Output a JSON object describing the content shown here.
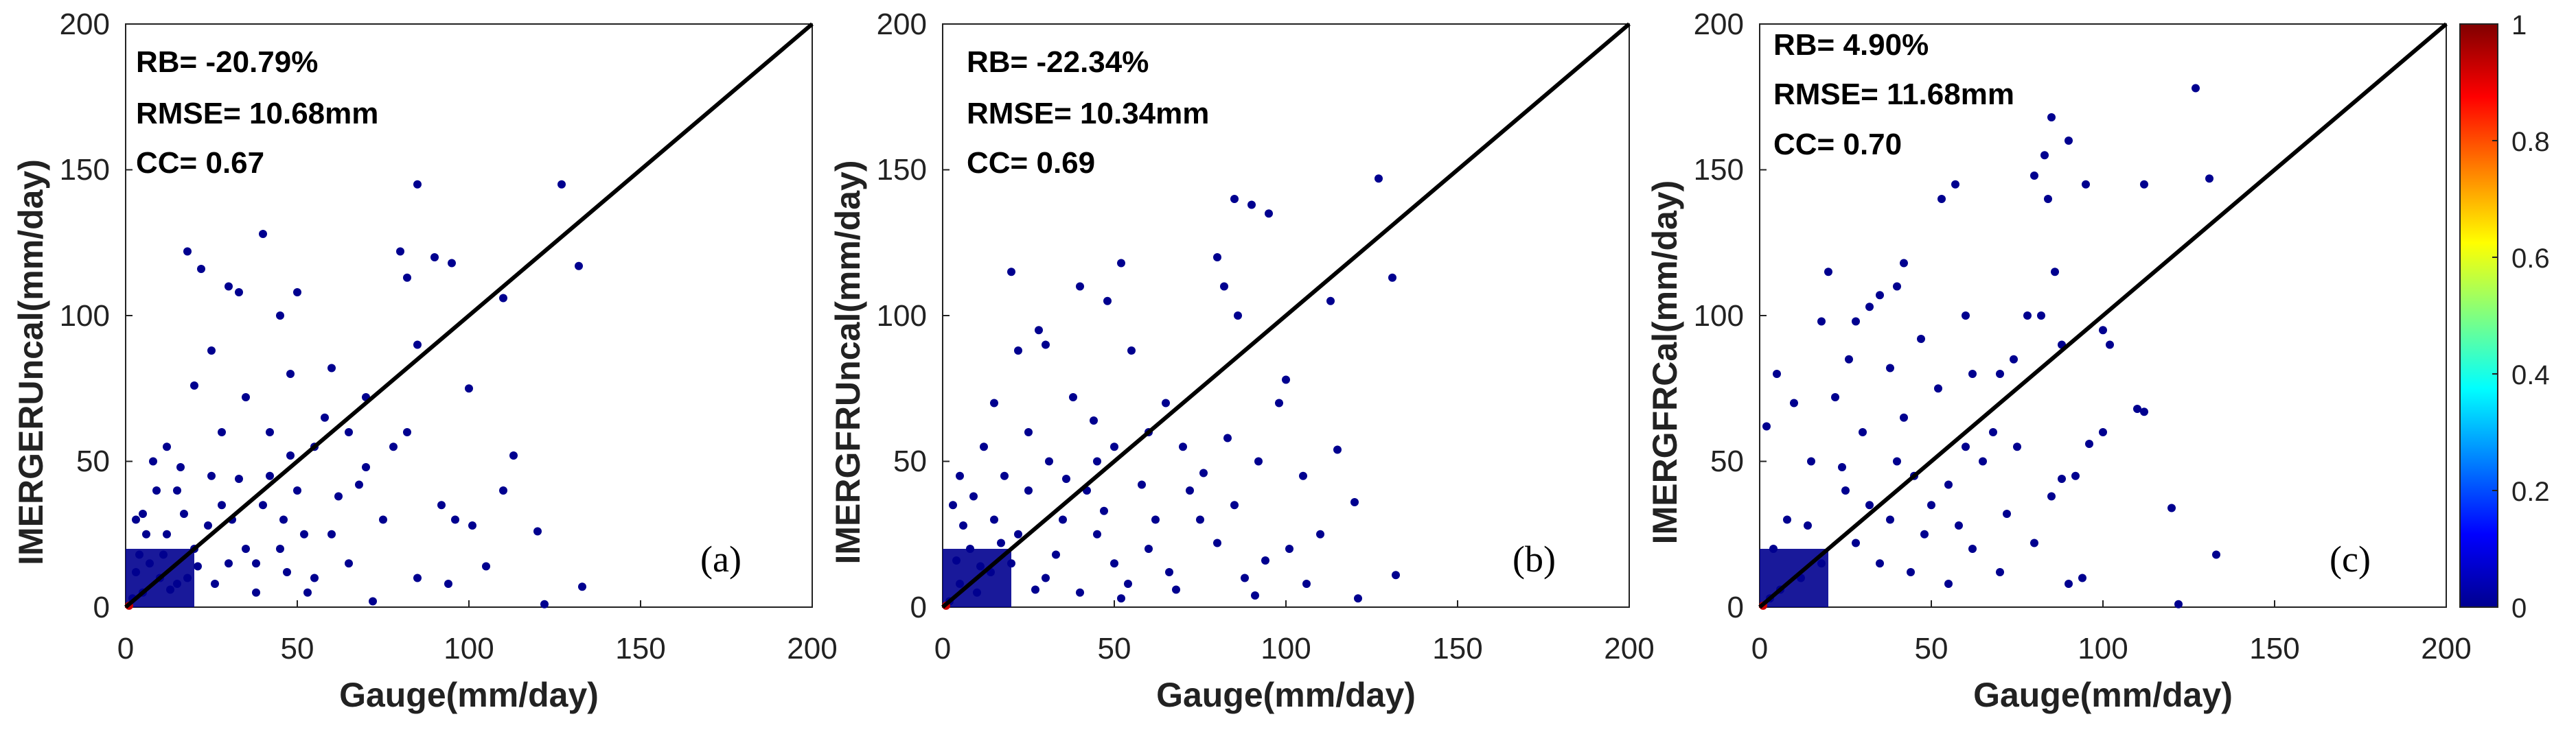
{
  "chart_data": [
    {
      "type": "scatter",
      "panel_label": "(a)",
      "xlabel": "Gauge(mm/day)",
      "ylabel": "IMERGERUncal(mm/day)",
      "xlim": [
        0,
        200
      ],
      "ylim": [
        0,
        200
      ],
      "xticks": [
        "0",
        "50",
        "100",
        "150",
        "200"
      ],
      "yticks": [
        "0",
        "50",
        "100",
        "150",
        "200"
      ],
      "stats": [
        "RB= -20.79%",
        "RMSE= 10.68mm",
        "CC= 0.67"
      ],
      "reference_line": [
        [
          0,
          0
        ],
        [
          200,
          200
        ]
      ],
      "point_color": "#00008f",
      "points": [
        [
          18,
          122
        ],
        [
          22,
          116
        ],
        [
          40,
          128
        ],
        [
          33,
          108
        ],
        [
          30,
          110
        ],
        [
          25,
          88
        ],
        [
          45,
          100
        ],
        [
          50,
          108
        ],
        [
          48,
          80
        ],
        [
          60,
          82
        ],
        [
          70,
          72
        ],
        [
          80,
          122
        ],
        [
          82,
          113
        ],
        [
          85,
          145
        ],
        [
          90,
          120
        ],
        [
          95,
          118
        ],
        [
          100,
          75
        ],
        [
          82,
          60
        ],
        [
          85,
          90
        ],
        [
          110,
          106
        ],
        [
          113,
          52
        ],
        [
          120,
          26
        ],
        [
          127,
          145
        ],
        [
          132,
          117
        ],
        [
          133,
          7
        ],
        [
          122,
          1
        ],
        [
          110,
          40
        ],
        [
          101,
          28
        ],
        [
          92,
          35
        ],
        [
          70,
          48
        ],
        [
          75,
          30
        ],
        [
          65,
          60
        ],
        [
          55,
          55
        ],
        [
          50,
          40
        ],
        [
          35,
          72
        ],
        [
          28,
          60
        ],
        [
          20,
          76
        ],
        [
          12,
          55
        ],
        [
          8,
          50
        ],
        [
          5,
          32
        ],
        [
          3,
          30
        ],
        [
          15,
          40
        ],
        [
          25,
          45
        ],
        [
          40,
          35
        ],
        [
          45,
          20
        ],
        [
          55,
          10
        ],
        [
          60,
          25
        ],
        [
          30,
          15
        ],
        [
          20,
          20
        ],
        [
          10,
          10
        ],
        [
          5,
          5
        ],
        [
          2,
          3
        ],
        [
          4,
          18
        ],
        [
          18,
          10
        ],
        [
          12,
          25
        ],
        [
          35,
          20
        ],
        [
          42,
          60
        ],
        [
          38,
          15
        ],
        [
          62,
          38
        ],
        [
          85,
          10
        ],
        [
          72,
          2
        ],
        [
          94,
          8
        ],
        [
          105,
          14
        ],
        [
          96,
          30
        ],
        [
          78,
          55
        ],
        [
          68,
          42
        ],
        [
          58,
          65
        ],
        [
          48,
          52
        ],
        [
          28,
          35
        ],
        [
          16,
          48
        ],
        [
          9,
          40
        ],
        [
          24,
          28
        ],
        [
          33,
          44
        ],
        [
          46,
          30
        ],
        [
          52,
          25
        ],
        [
          15,
          8
        ],
        [
          7,
          15
        ],
        [
          26,
          8
        ],
        [
          38,
          5
        ],
        [
          42,
          45
        ],
        [
          65,
          15
        ],
        [
          53,
          5
        ],
        [
          47,
          12
        ],
        [
          3,
          12
        ],
        [
          6,
          25
        ],
        [
          11,
          18
        ],
        [
          21,
          14
        ],
        [
          31,
          30
        ],
        [
          17,
          32
        ],
        [
          13,
          6
        ]
      ]
    },
    {
      "type": "scatter",
      "panel_label": "(b)",
      "xlabel": "Gauge(mm/day)",
      "ylabel": "IMERGFRUncal(mm/day)",
      "xlim": [
        0,
        200
      ],
      "ylim": [
        0,
        200
      ],
      "xticks": [
        "0",
        "50",
        "100",
        "150",
        "200"
      ],
      "yticks": [
        "0",
        "50",
        "100",
        "150",
        "200"
      ],
      "stats": [
        "RB= -22.34%",
        "RMSE= 10.34mm",
        "CC= 0.69"
      ],
      "reference_line": [
        [
          0,
          0
        ],
        [
          200,
          200
        ]
      ],
      "point_color": "#00008f",
      "points": [
        [
          20,
          115
        ],
        [
          40,
          110
        ],
        [
          48,
          105
        ],
        [
          52,
          118
        ],
        [
          22,
          88
        ],
        [
          30,
          90
        ],
        [
          80,
          120
        ],
        [
          85,
          140
        ],
        [
          90,
          138
        ],
        [
          95,
          135
        ],
        [
          82,
          110
        ],
        [
          86,
          100
        ],
        [
          127,
          147
        ],
        [
          131,
          113
        ],
        [
          113,
          105
        ],
        [
          120,
          36
        ],
        [
          115,
          54
        ],
        [
          132,
          11
        ],
        [
          100,
          78
        ],
        [
          98,
          70
        ],
        [
          92,
          50
        ],
        [
          105,
          45
        ],
        [
          110,
          25
        ],
        [
          85,
          35
        ],
        [
          75,
          30
        ],
        [
          70,
          55
        ],
        [
          65,
          70
        ],
        [
          55,
          88
        ],
        [
          60,
          60
        ],
        [
          45,
          50
        ],
        [
          38,
          72
        ],
        [
          28,
          95
        ],
        [
          15,
          70
        ],
        [
          12,
          55
        ],
        [
          5,
          45
        ],
        [
          3,
          35
        ],
        [
          8,
          20
        ],
        [
          15,
          30
        ],
        [
          25,
          40
        ],
        [
          35,
          30
        ],
        [
          45,
          25
        ],
        [
          50,
          15
        ],
        [
          60,
          20
        ],
        [
          30,
          10
        ],
        [
          20,
          15
        ],
        [
          10,
          5
        ],
        [
          5,
          8
        ],
        [
          2,
          2
        ],
        [
          6,
          28
        ],
        [
          18,
          45
        ],
        [
          25,
          60
        ],
        [
          42,
          40
        ],
        [
          50,
          55
        ],
        [
          58,
          42
        ],
        [
          72,
          40
        ],
        [
          88,
          10
        ],
        [
          80,
          22
        ],
        [
          101,
          20
        ],
        [
          94,
          16
        ],
        [
          66,
          12
        ],
        [
          54,
          8
        ],
        [
          40,
          5
        ],
        [
          33,
          18
        ],
        [
          14,
          12
        ],
        [
          9,
          38
        ],
        [
          22,
          25
        ],
        [
          31,
          50
        ],
        [
          44,
          64
        ],
        [
          62,
          30
        ],
        [
          76,
          46
        ],
        [
          83,
          58
        ],
        [
          47,
          33
        ],
        [
          36,
          44
        ],
        [
          27,
          6
        ],
        [
          17,
          22
        ],
        [
          11,
          14
        ],
        [
          4,
          16
        ],
        [
          52,
          3
        ],
        [
          68,
          6
        ],
        [
          91,
          4
        ],
        [
          106,
          8
        ],
        [
          121,
          3
        ]
      ]
    },
    {
      "type": "scatter",
      "panel_label": "(c)",
      "xlabel": "Gauge(mm/day)",
      "ylabel": "IMERGFRCal(mm/day)",
      "xlim": [
        0,
        200
      ],
      "ylim": [
        0,
        200
      ],
      "xticks": [
        "0",
        "50",
        "100",
        "150",
        "200"
      ],
      "yticks": [
        "0",
        "50",
        "100",
        "150",
        "200"
      ],
      "stats": [
        "RB= 4.90%",
        "RMSE= 11.68mm",
        "CC= 0.70"
      ],
      "reference_line": [
        [
          0,
          0
        ],
        [
          200,
          200
        ]
      ],
      "point_color": "#00008f",
      "points": [
        [
          85,
          168
        ],
        [
          90,
          160
        ],
        [
          83,
          155
        ],
        [
          80,
          148
        ],
        [
          84,
          140
        ],
        [
          95,
          145
        ],
        [
          112,
          145
        ],
        [
          127,
          178
        ],
        [
          131,
          147
        ],
        [
          110,
          68
        ],
        [
          112,
          67
        ],
        [
          100,
          95
        ],
        [
          102,
          90
        ],
        [
          120,
          34
        ],
        [
          122,
          1
        ],
        [
          133,
          18
        ],
        [
          100,
          60
        ],
        [
          92,
          45
        ],
        [
          88,
          44
        ],
        [
          96,
          56
        ],
        [
          86,
          115
        ],
        [
          88,
          90
        ],
        [
          82,
          100
        ],
        [
          78,
          100
        ],
        [
          74,
          85
        ],
        [
          70,
          80
        ],
        [
          62,
          80
        ],
        [
          60,
          100
        ],
        [
          57,
          145
        ],
        [
          53,
          140
        ],
        [
          42,
          118
        ],
        [
          40,
          110
        ],
        [
          35,
          107
        ],
        [
          32,
          103
        ],
        [
          28,
          98
        ],
        [
          20,
          115
        ],
        [
          18,
          98
        ],
        [
          5,
          80
        ],
        [
          2,
          62
        ],
        [
          10,
          70
        ],
        [
          22,
          72
        ],
        [
          30,
          60
        ],
        [
          40,
          50
        ],
        [
          45,
          45
        ],
        [
          50,
          35
        ],
        [
          55,
          42
        ],
        [
          65,
          50
        ],
        [
          68,
          60
        ],
        [
          75,
          55
        ],
        [
          85,
          38
        ],
        [
          58,
          28
        ],
        [
          48,
          25
        ],
        [
          38,
          30
        ],
        [
          28,
          22
        ],
        [
          18,
          15
        ],
        [
          12,
          10
        ],
        [
          6,
          6
        ],
        [
          3,
          3
        ],
        [
          8,
          30
        ],
        [
          15,
          50
        ],
        [
          25,
          40
        ],
        [
          32,
          35
        ],
        [
          42,
          65
        ],
        [
          52,
          75
        ],
        [
          62,
          20
        ],
        [
          70,
          12
        ],
        [
          90,
          8
        ],
        [
          55,
          8
        ],
        [
          44,
          12
        ],
        [
          35,
          15
        ],
        [
          24,
          48
        ],
        [
          14,
          28
        ],
        [
          4,
          20
        ],
        [
          60,
          55
        ],
        [
          72,
          32
        ],
        [
          80,
          22
        ],
        [
          94,
          10
        ],
        [
          47,
          92
        ],
        [
          38,
          82
        ],
        [
          26,
          85
        ]
      ]
    }
  ],
  "colorbar": {
    "ticks": [
      "1",
      "0.8",
      "0.6",
      "0.4",
      "0.2",
      "0"
    ],
    "colormap": [
      "#00008f",
      "#0000ff",
      "#0080ff",
      "#00ffff",
      "#80ff80",
      "#ffff00",
      "#ff8000",
      "#ff0000",
      "#800000"
    ]
  }
}
